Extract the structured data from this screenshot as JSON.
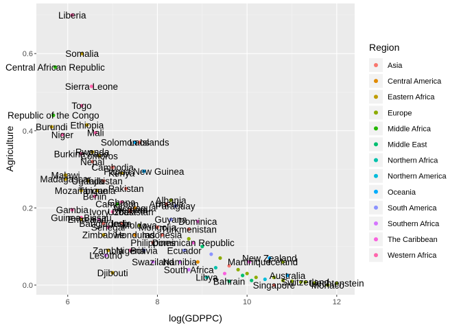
{
  "chart_data": {
    "type": "scatter",
    "xlabel": "log(GDPPC)",
    "ylabel": "Agriculture",
    "xlim": [
      5.3,
      12.4
    ],
    "ylim": [
      -0.025,
      0.73
    ],
    "x_ticks": [
      6,
      8,
      10,
      12
    ],
    "y_ticks": [
      0.0,
      0.2,
      0.4,
      0.6
    ],
    "x_tick_labels": [
      "6",
      "8",
      "10",
      "12"
    ],
    "y_tick_labels": [
      "0.0",
      "0.2",
      "0.4",
      "0.6"
    ],
    "grid": true,
    "legend": {
      "title": "Region",
      "placement": "right",
      "entries": [
        "Asia",
        "Central America",
        "Eastern Africa",
        "Europe",
        "Middle Africa",
        "Middle East",
        "Northern Africa",
        "Northern America",
        "Oceania",
        "South America",
        "Southern Africa",
        "The Caribbean",
        "Western Africa"
      ]
    },
    "region_colors": {
      "Asia": "#F8766D",
      "Central America": "#E18A00",
      "Eastern Africa": "#BE9C00",
      "Europe": "#8CAB00",
      "Middle Africa": "#24B700",
      "Middle East": "#00BE70",
      "Northern Africa": "#00C1AB",
      "Northern America": "#00BBDA",
      "Oceania": "#00ACFC",
      "South America": "#8B93FF",
      "Southern Africa": "#D575FE",
      "The Caribbean": "#F962DD",
      "Western Africa": "#FF65AC"
    },
    "points": [
      {
        "label": "Liberia",
        "x": 6.1,
        "y": 0.7,
        "region": "Western Africa"
      },
      {
        "label": "Somalia",
        "x": 6.32,
        "y": 0.6,
        "region": "Eastern Africa"
      },
      {
        "label": "Central African Republic",
        "x": 5.72,
        "y": 0.565,
        "region": "Middle Africa"
      },
      {
        "label": "Sierra Leone",
        "x": 6.53,
        "y": 0.515,
        "region": "Western Africa"
      },
      {
        "label": "Togo",
        "x": 6.31,
        "y": 0.465,
        "region": "Western Africa"
      },
      {
        "label": "Republic of the Congo",
        "x": 5.68,
        "y": 0.44,
        "region": "Middle Africa"
      },
      {
        "label": "Ethiopia",
        "x": 6.43,
        "y": 0.415,
        "region": "Eastern Africa"
      },
      {
        "label": "Burundi",
        "x": 5.64,
        "y": 0.41,
        "region": "Eastern Africa"
      },
      {
        "label": "Mali",
        "x": 6.62,
        "y": 0.395,
        "region": "Western Africa"
      },
      {
        "label": "Niger",
        "x": 5.88,
        "y": 0.39,
        "region": "Western Africa"
      },
      {
        "label": "Solomon Islands",
        "x": 7.5,
        "y": 0.37,
        "region": "Oceania"
      },
      {
        "label": "Laos",
        "x": 7.6,
        "y": 0.37,
        "region": "Asia"
      },
      {
        "label": "Rwanda",
        "x": 6.55,
        "y": 0.345,
        "region": "Eastern Africa"
      },
      {
        "label": "Burkina Faso",
        "x": 6.3,
        "y": 0.34,
        "region": "Western Africa"
      },
      {
        "label": "Comoros",
        "x": 6.7,
        "y": 0.335,
        "region": "Eastern Africa"
      },
      {
        "label": "Nepal",
        "x": 6.55,
        "y": 0.32,
        "region": "Asia"
      },
      {
        "label": "Cambodia",
        "x": 7.0,
        "y": 0.305,
        "region": "Asia"
      },
      {
        "label": "Papua New Guinea",
        "x": 7.7,
        "y": 0.295,
        "region": "Oceania"
      },
      {
        "label": "Kenya",
        "x": 7.2,
        "y": 0.29,
        "region": "Eastern Africa"
      },
      {
        "label": "Malawi",
        "x": 5.95,
        "y": 0.285,
        "region": "Eastern Africa"
      },
      {
        "label": "Madagascar",
        "x": 5.95,
        "y": 0.275,
        "region": "Eastern Africa"
      },
      {
        "label": "Uganda",
        "x": 6.45,
        "y": 0.27,
        "region": "Eastern Africa"
      },
      {
        "label": "Tajikistan",
        "x": 6.8,
        "y": 0.27,
        "region": "Asia"
      },
      {
        "label": "Pakistan",
        "x": 7.3,
        "y": 0.25,
        "region": "Asia"
      },
      {
        "label": "Mozambique",
        "x": 6.3,
        "y": 0.245,
        "region": "Eastern Africa"
      },
      {
        "label": "Tanzania",
        "x": 6.65,
        "y": 0.245,
        "region": "Eastern Africa"
      },
      {
        "label": "Benin",
        "x": 6.6,
        "y": 0.23,
        "region": "Western Africa"
      },
      {
        "label": "Albania",
        "x": 8.3,
        "y": 0.22,
        "region": "Europe"
      },
      {
        "label": "Ghana",
        "x": 7.2,
        "y": 0.215,
        "region": "Western Africa"
      },
      {
        "label": "Cameroon",
        "x": 7.1,
        "y": 0.21,
        "region": "Middle Africa"
      },
      {
        "label": "Armenia",
        "x": 8.2,
        "y": 0.21,
        "region": "Asia"
      },
      {
        "label": "Paraguay",
        "x": 8.4,
        "y": 0.205,
        "region": "South America"
      },
      {
        "label": "Nicaragua",
        "x": 7.5,
        "y": 0.2,
        "region": "Central America"
      },
      {
        "label": "Vietnam",
        "x": 7.4,
        "y": 0.195,
        "region": "Asia"
      },
      {
        "label": "Ivory Coast",
        "x": 7.0,
        "y": 0.19,
        "region": "Western Africa"
      },
      {
        "label": "Uzbekistan",
        "x": 7.4,
        "y": 0.19,
        "region": "Asia"
      },
      {
        "label": "Gambia",
        "x": 6.1,
        "y": 0.195,
        "region": "Western Africa"
      },
      {
        "label": "Guinea-Bissau",
        "x": 6.3,
        "y": 0.175,
        "region": "Western Africa"
      },
      {
        "label": "Eritrea",
        "x": 6.3,
        "y": 0.17,
        "region": "Eastern Africa"
      },
      {
        "label": "Haiti",
        "x": 6.7,
        "y": 0.17,
        "region": "The Caribbean"
      },
      {
        "label": "Guyana",
        "x": 8.3,
        "y": 0.17,
        "region": "South America"
      },
      {
        "label": "Dominica",
        "x": 8.9,
        "y": 0.165,
        "region": "The Caribbean"
      },
      {
        "label": "Bangladesh",
        "x": 6.8,
        "y": 0.16,
        "region": "Asia"
      },
      {
        "label": "India",
        "x": 7.2,
        "y": 0.16,
        "region": "Asia"
      },
      {
        "label": "Moldova",
        "x": 7.6,
        "y": 0.155,
        "region": "Europe"
      },
      {
        "label": "Senegal",
        "x": 6.9,
        "y": 0.15,
        "region": "Western Africa"
      },
      {
        "label": "Mongolia",
        "x": 8.0,
        "y": 0.15,
        "region": "Asia"
      },
      {
        "label": "Turkmenistan",
        "x": 8.7,
        "y": 0.145,
        "region": "Asia"
      },
      {
        "label": "Zimbabwe",
        "x": 6.8,
        "y": 0.13,
        "region": "Eastern Africa"
      },
      {
        "label": "Honduras",
        "x": 7.5,
        "y": 0.13,
        "region": "Central America"
      },
      {
        "label": "Indonesia",
        "x": 8.1,
        "y": 0.13,
        "region": "Asia"
      },
      {
        "label": "Philippines",
        "x": 7.9,
        "y": 0.11,
        "region": "Asia"
      },
      {
        "label": "Dominican Republic",
        "x": 8.8,
        "y": 0.11,
        "region": "The Caribbean"
      },
      {
        "label": "Zambia",
        "x": 6.9,
        "y": 0.09,
        "region": "Eastern Africa"
      },
      {
        "label": "Bolivia",
        "x": 7.7,
        "y": 0.09,
        "region": "South America"
      },
      {
        "label": "Nigeria",
        "x": 7.4,
        "y": 0.09,
        "region": "Western Africa"
      },
      {
        "label": "Lesotho",
        "x": 6.85,
        "y": 0.077,
        "region": "Southern Africa"
      },
      {
        "label": "Ecuador",
        "x": 8.6,
        "y": 0.09,
        "region": "South America"
      },
      {
        "label": "New Zealand",
        "x": 10.5,
        "y": 0.07,
        "region": "Oceania"
      },
      {
        "label": "Martinique",
        "x": 10.05,
        "y": 0.06,
        "region": "The Caribbean"
      },
      {
        "label": "Iceland",
        "x": 10.8,
        "y": 0.06,
        "region": "Europe"
      },
      {
        "label": "Swaziland",
        "x": 7.9,
        "y": 0.06,
        "region": "Southern Africa"
      },
      {
        "label": "Namibia",
        "x": 8.5,
        "y": 0.06,
        "region": "Southern Africa"
      },
      {
        "label": "Djibouti",
        "x": 7.0,
        "y": 0.032,
        "region": "Eastern Africa"
      },
      {
        "label": "South Africa",
        "x": 8.7,
        "y": 0.04,
        "region": "Southern Africa"
      },
      {
        "label": "Libya",
        "x": 9.1,
        "y": 0.02,
        "region": "Northern Africa"
      },
      {
        "label": "Australia",
        "x": 10.9,
        "y": 0.025,
        "region": "Oceania"
      },
      {
        "label": "Bahrain",
        "x": 9.6,
        "y": 0.01,
        "region": "Middle East"
      },
      {
        "label": "Singapore",
        "x": 10.6,
        "y": 0.0,
        "region": "Asia"
      },
      {
        "label": "Monaco",
        "x": 11.8,
        "y": 0.0,
        "region": "Europe"
      },
      {
        "label": "Liechtenstein",
        "x": 12.0,
        "y": 0.005,
        "region": "Europe"
      },
      {
        "label": "Switzerland",
        "x": 11.3,
        "y": 0.008,
        "region": "Europe"
      }
    ],
    "unlabeled_points": [
      {
        "x": 8.7,
        "y": 0.12,
        "region": "Europe"
      },
      {
        "x": 9.0,
        "y": 0.1,
        "region": "Middle East"
      },
      {
        "x": 9.2,
        "y": 0.08,
        "region": "South America"
      },
      {
        "x": 9.4,
        "y": 0.07,
        "region": "Europe"
      },
      {
        "x": 9.6,
        "y": 0.05,
        "region": "Asia"
      },
      {
        "x": 9.8,
        "y": 0.04,
        "region": "Europe"
      },
      {
        "x": 10.0,
        "y": 0.03,
        "region": "Europe"
      },
      {
        "x": 10.2,
        "y": 0.02,
        "region": "Europe"
      },
      {
        "x": 10.4,
        "y": 0.015,
        "region": "Northern America"
      },
      {
        "x": 10.6,
        "y": 0.02,
        "region": "Europe"
      },
      {
        "x": 10.8,
        "y": 0.012,
        "region": "Europe"
      },
      {
        "x": 11.0,
        "y": 0.01,
        "region": "Europe"
      },
      {
        "x": 11.2,
        "y": 0.008,
        "region": "Europe"
      },
      {
        "x": 9.3,
        "y": 0.045,
        "region": "Northern Africa"
      },
      {
        "x": 9.9,
        "y": 0.025,
        "region": "Middle East"
      },
      {
        "x": 8.9,
        "y": 0.06,
        "region": "Central America"
      },
      {
        "x": 9.5,
        "y": 0.03,
        "region": "The Caribbean"
      },
      {
        "x": 10.1,
        "y": 0.012,
        "region": "Middle East"
      },
      {
        "x": 11.5,
        "y": 0.005,
        "region": "Europe"
      }
    ]
  }
}
